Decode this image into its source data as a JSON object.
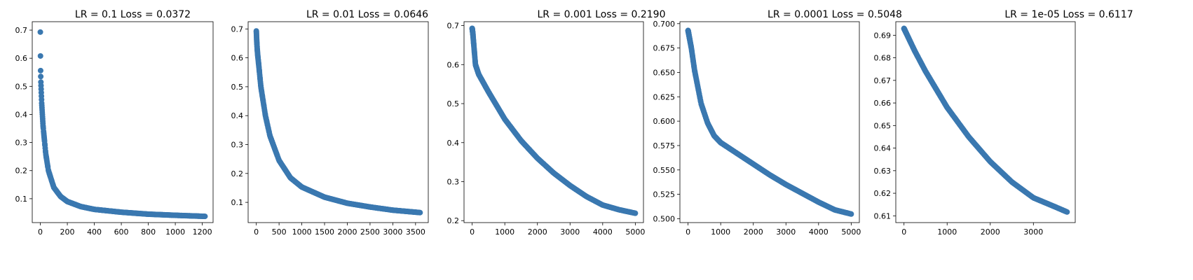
{
  "figure": {
    "marker_color": "#3a78b0",
    "axes_color": "#000000",
    "background": "#ffffff"
  },
  "chart_data": [
    {
      "type": "scatter",
      "title": "LR = 0.1 Loss = 0.0372",
      "xlabel": "",
      "ylabel": "",
      "grid": false,
      "xlim": [
        -60,
        1280
      ],
      "ylim": [
        0.015,
        0.73
      ],
      "xticks": [
        0,
        200,
        400,
        600,
        800,
        1000,
        1200
      ],
      "yticks": [
        0.1,
        0.2,
        0.3,
        0.4,
        0.5,
        0.6,
        0.7
      ],
      "n_epochs": 1220,
      "initial_loss": 0.693,
      "final_loss": 0.0372,
      "sample_points": [
        [
          0,
          0.693
        ],
        [
          1,
          0.608
        ],
        [
          2,
          0.556
        ],
        [
          3,
          0.535
        ],
        [
          4,
          0.515
        ],
        [
          6,
          0.49
        ],
        [
          10,
          0.44
        ],
        [
          20,
          0.36
        ],
        [
          40,
          0.26
        ],
        [
          60,
          0.2
        ],
        [
          100,
          0.14
        ],
        [
          150,
          0.108
        ],
        [
          200,
          0.09
        ],
        [
          300,
          0.072
        ],
        [
          400,
          0.062
        ],
        [
          600,
          0.052
        ],
        [
          800,
          0.045
        ],
        [
          1000,
          0.041
        ],
        [
          1220,
          0.0372
        ]
      ]
    },
    {
      "type": "scatter",
      "title": "LR = 0.01 Loss = 0.0646",
      "xlabel": "",
      "ylabel": "",
      "grid": false,
      "xlim": [
        -180,
        3780
      ],
      "ylim": [
        0.03,
        0.725
      ],
      "xticks": [
        0,
        500,
        1000,
        1500,
        2000,
        2500,
        3000,
        3500
      ],
      "yticks": [
        0.1,
        0.2,
        0.3,
        0.4,
        0.5,
        0.6,
        0.7
      ],
      "n_epochs": 3600,
      "initial_loss": 0.693,
      "final_loss": 0.0646,
      "sample_points": [
        [
          0,
          0.693
        ],
        [
          10,
          0.655
        ],
        [
          20,
          0.63
        ],
        [
          30,
          0.61
        ],
        [
          50,
          0.58
        ],
        [
          100,
          0.5
        ],
        [
          200,
          0.4
        ],
        [
          300,
          0.33
        ],
        [
          500,
          0.245
        ],
        [
          750,
          0.185
        ],
        [
          1000,
          0.153
        ],
        [
          1500,
          0.118
        ],
        [
          2000,
          0.097
        ],
        [
          2500,
          0.084
        ],
        [
          3000,
          0.073
        ],
        [
          3600,
          0.0646
        ]
      ]
    },
    {
      "type": "scatter",
      "title": "LR = 0.001 Loss = 0.2190",
      "xlabel": "",
      "ylabel": "",
      "grid": false,
      "xlim": [
        -250,
        5250
      ],
      "ylim": [
        0.195,
        0.71
      ],
      "xticks": [
        0,
        1000,
        2000,
        3000,
        4000,
        5000
      ],
      "yticks": [
        0.2,
        0.3,
        0.4,
        0.5,
        0.6,
        0.7
      ],
      "n_epochs": 5000,
      "initial_loss": 0.693,
      "final_loss": 0.219,
      "sample_points": [
        [
          0,
          0.693
        ],
        [
          20,
          0.68
        ],
        [
          50,
          0.65
        ],
        [
          100,
          0.6
        ],
        [
          200,
          0.575
        ],
        [
          500,
          0.53
        ],
        [
          1000,
          0.46
        ],
        [
          1500,
          0.405
        ],
        [
          2000,
          0.36
        ],
        [
          2500,
          0.322
        ],
        [
          3000,
          0.29
        ],
        [
          3500,
          0.262
        ],
        [
          4000,
          0.24
        ],
        [
          4500,
          0.228
        ],
        [
          5000,
          0.219
        ]
      ]
    },
    {
      "type": "scatter",
      "title": "LR = 0.0001 Loss = 0.5048",
      "xlabel": "",
      "ylabel": "",
      "grid": false,
      "xlim": [
        -250,
        5250
      ],
      "ylim": [
        0.496,
        0.702
      ],
      "xticks": [
        0,
        1000,
        2000,
        3000,
        4000,
        5000
      ],
      "yticks": [
        0.5,
        0.525,
        0.55,
        0.575,
        0.6,
        0.625,
        0.65,
        0.675,
        0.7
      ],
      "ytick_labels": [
        "0.500",
        "0.525",
        "0.550",
        "0.575",
        "0.600",
        "0.625",
        "0.650",
        "0.675",
        "0.700"
      ],
      "n_epochs": 5000,
      "initial_loss": 0.693,
      "final_loss": 0.5048,
      "sample_points": [
        [
          0,
          0.693
        ],
        [
          100,
          0.675
        ],
        [
          200,
          0.652
        ],
        [
          400,
          0.618
        ],
        [
          600,
          0.598
        ],
        [
          800,
          0.585
        ],
        [
          1000,
          0.578
        ],
        [
          1500,
          0.567
        ],
        [
          2000,
          0.556
        ],
        [
          2500,
          0.545
        ],
        [
          3000,
          0.535
        ],
        [
          3500,
          0.526
        ],
        [
          4000,
          0.517
        ],
        [
          4500,
          0.509
        ],
        [
          5000,
          0.5048
        ]
      ]
    },
    {
      "type": "scatter",
      "title": "LR = 1e-05 Loss = 0.6117",
      "xlabel": "",
      "ylabel": "",
      "grid": false,
      "xlim": [
        -190,
        3970
      ],
      "ylim": [
        0.607,
        0.696
      ],
      "xticks": [
        0,
        1000,
        2000,
        3000
      ],
      "yticks": [
        0.61,
        0.62,
        0.63,
        0.64,
        0.65,
        0.66,
        0.67,
        0.68,
        0.69
      ],
      "n_epochs": 3780,
      "initial_loss": 0.693,
      "final_loss": 0.6117,
      "sample_points": [
        [
          0,
          0.693
        ],
        [
          250,
          0.683
        ],
        [
          500,
          0.674
        ],
        [
          750,
          0.666
        ],
        [
          1000,
          0.658
        ],
        [
          1500,
          0.645
        ],
        [
          2000,
          0.634
        ],
        [
          2500,
          0.625
        ],
        [
          3000,
          0.618
        ],
        [
          3500,
          0.614
        ],
        [
          3780,
          0.6117
        ]
      ]
    }
  ]
}
